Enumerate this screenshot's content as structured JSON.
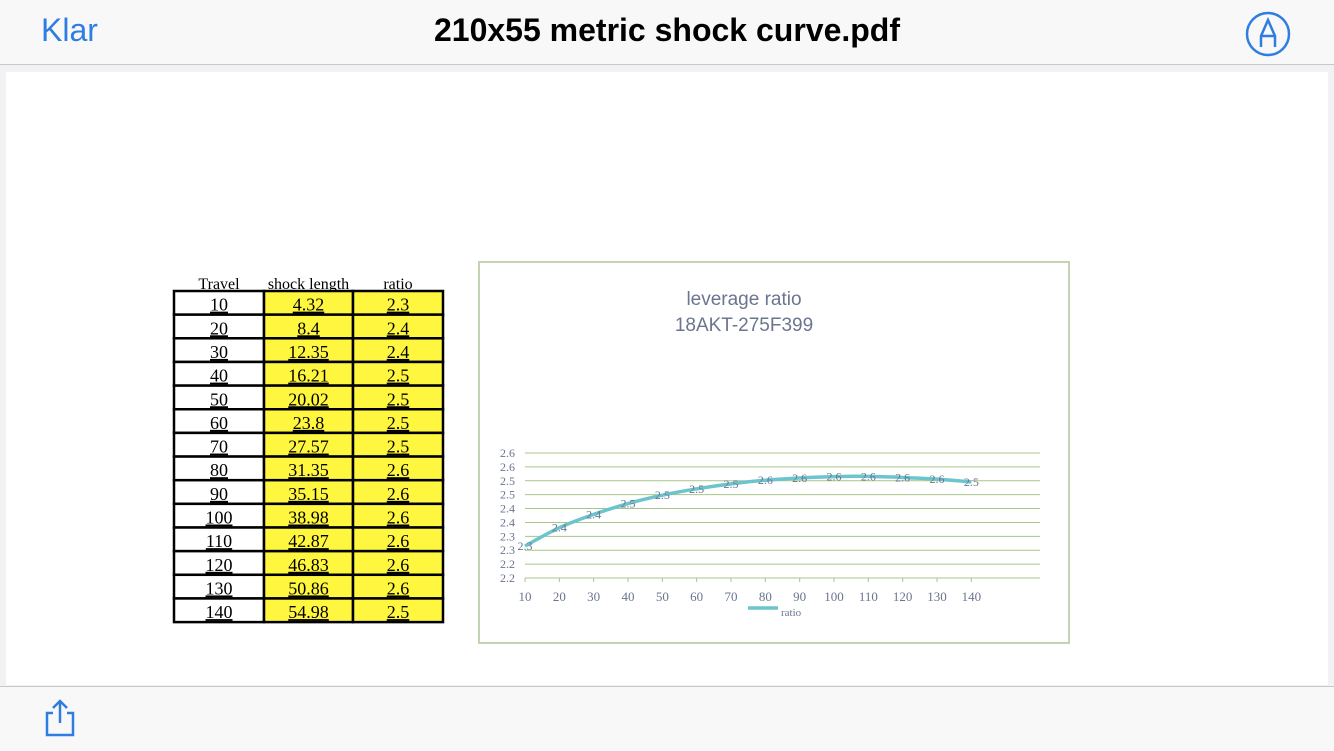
{
  "nav": {
    "back": "Klar",
    "title": "210x55 metric shock curve.pdf"
  },
  "table": {
    "headers": [
      "Travel",
      "shock length",
      "ratio"
    ],
    "rows": [
      [
        10,
        4.32,
        2.3
      ],
      [
        20,
        8.4,
        2.4
      ],
      [
        30,
        12.35,
        2.4
      ],
      [
        40,
        16.21,
        2.5
      ],
      [
        50,
        20.02,
        2.5
      ],
      [
        60,
        23.8,
        2.5
      ],
      [
        70,
        27.57,
        2.5
      ],
      [
        80,
        31.35,
        2.6
      ],
      [
        90,
        35.15,
        2.6
      ],
      [
        100,
        38.98,
        2.6
      ],
      [
        110,
        42.87,
        2.6
      ],
      [
        120,
        46.83,
        2.6
      ],
      [
        130,
        50.86,
        2.6
      ],
      [
        140,
        54.98,
        2.5
      ]
    ]
  },
  "chart_data": {
    "type": "line",
    "title": "leverage ratio",
    "subtitle": "18AKT-275F399",
    "x": [
      10,
      20,
      30,
      40,
      50,
      60,
      70,
      80,
      90,
      100,
      110,
      120,
      130,
      140
    ],
    "xlim": [
      10,
      160
    ],
    "xticks": [
      10,
      20,
      30,
      40,
      50,
      60,
      70,
      80,
      90,
      100,
      110,
      120,
      130,
      140
    ],
    "ylim": [
      2.2,
      2.65
    ],
    "yticks": [
      2.2,
      {
        "value": 2.25,
        "label": "2.2"
      },
      2.3,
      {
        "value": 2.35,
        "label": "2.3"
      },
      2.4,
      {
        "value": 2.45,
        "label": "2.4"
      },
      2.5,
      {
        "value": 2.55,
        "label": "2.5"
      },
      2.6,
      {
        "value": 2.65,
        "label": "2.6"
      }
    ],
    "grid": true,
    "series": [
      {
        "name": "ratio",
        "color": "#6cc4cc",
        "values": [
          2.315,
          2.381,
          2.429,
          2.468,
          2.498,
          2.521,
          2.539,
          2.552,
          2.56,
          2.565,
          2.566,
          2.562,
          2.556,
          2.546
        ],
        "value_labels": [
          "2.3",
          "2.4",
          "2.4",
          "2.5",
          "2.5",
          "2.5",
          "2.5",
          "2.6",
          "2.6",
          "2.6",
          "2.6",
          "2.6",
          "2.6",
          "2.5"
        ]
      }
    ]
  }
}
